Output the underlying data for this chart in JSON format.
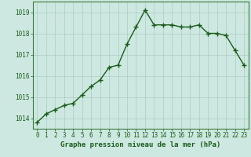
{
  "x": [
    0,
    1,
    2,
    3,
    4,
    5,
    6,
    7,
    8,
    9,
    10,
    11,
    12,
    13,
    14,
    15,
    16,
    17,
    18,
    19,
    20,
    21,
    22,
    23
  ],
  "y": [
    1013.8,
    1014.2,
    1014.4,
    1014.6,
    1014.7,
    1015.1,
    1015.5,
    1015.8,
    1016.4,
    1016.5,
    1017.5,
    1018.3,
    1019.1,
    1018.4,
    1018.4,
    1018.4,
    1018.3,
    1018.3,
    1018.4,
    1018.0,
    1018.0,
    1017.9,
    1017.2,
    1016.5
  ],
  "line_color": "#1a5c1a",
  "marker": "+",
  "marker_size": 4,
  "bg_color": "#cce8e0",
  "grid_color": "#aaccc4",
  "xlabel": "Graphe pression niveau de la mer (hPa)",
  "xlabel_color": "#1a5c1a",
  "tick_color": "#1a5c1a",
  "ylim": [
    1013.5,
    1019.5
  ],
  "yticks": [
    1014,
    1015,
    1016,
    1017,
    1018,
    1019
  ],
  "xticks": [
    0,
    1,
    2,
    3,
    4,
    5,
    6,
    7,
    8,
    9,
    10,
    11,
    12,
    13,
    14,
    15,
    16,
    17,
    18,
    19,
    20,
    21,
    22,
    23
  ],
  "spine_color": "#3a7a3a",
  "tick_fontsize": 5.5,
  "xlabel_fontsize": 6.5,
  "line_width": 1.0,
  "marker_linewidth": 1.0
}
